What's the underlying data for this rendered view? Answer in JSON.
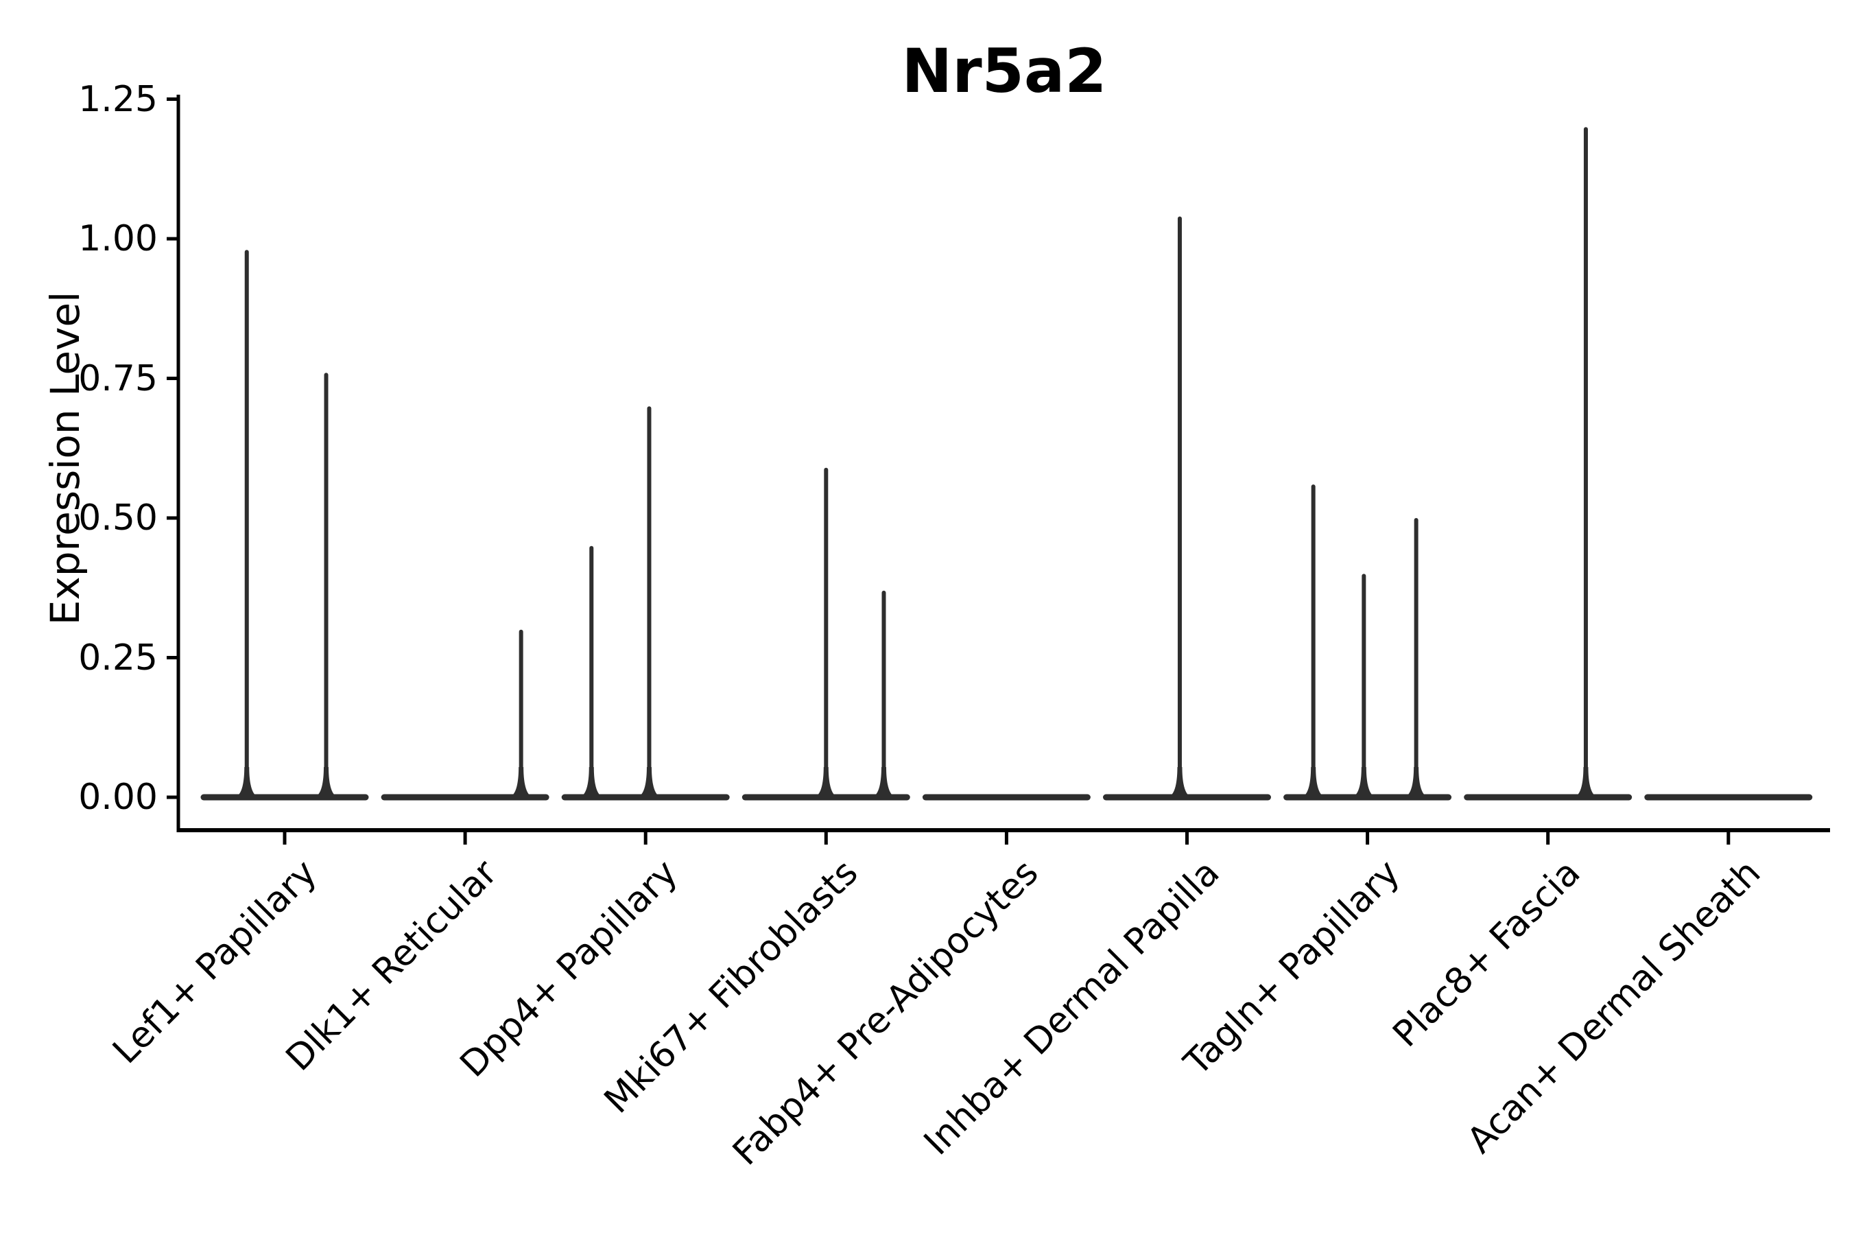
{
  "title": "Nr5a2",
  "chart_data": {
    "type": "violin",
    "title": "Nr5a2",
    "xlabel": "",
    "ylabel": "Expression Level",
    "ylim": [
      -0.06,
      1.27
    ],
    "y_ticks": [
      0,
      0.25,
      0.5,
      0.75,
      1.0,
      1.25
    ],
    "y_tick_labels": [
      "0.00",
      "0.25",
      "0.50",
      "0.75",
      "1.00",
      "1.25"
    ],
    "grid": false,
    "legend": null,
    "violin_width": 0.9,
    "categories": [
      "Lef1+ Papillary",
      "Dlk1+ Reticular",
      "Dpp4+ Papillary",
      "Mki67+ Fibroblasts",
      "Fabp4+ Pre-Adipocytes",
      "Inhba+ Dermal Papilla",
      "Tagln+ Papillary",
      "Plac8+ Fascia",
      "Acan+ Dermal Sheath"
    ],
    "violins": [
      {
        "category": "Lef1+ Papillary",
        "baseline_value": 0,
        "spikes": [
          {
            "offset": -0.21,
            "value": 0.98
          },
          {
            "offset": 0.23,
            "value": 0.76
          }
        ]
      },
      {
        "category": "Dlk1+ Reticular",
        "baseline_value": 0,
        "spikes": [
          {
            "offset": 0.31,
            "value": 0.3
          }
        ]
      },
      {
        "category": "Dpp4+ Papillary",
        "baseline_value": 0,
        "spikes": [
          {
            "offset": -0.3,
            "value": 0.45
          },
          {
            "offset": 0.02,
            "value": 0.7
          }
        ]
      },
      {
        "category": "Mki67+ Fibroblasts",
        "baseline_value": 0,
        "spikes": [
          {
            "offset": 0.0,
            "value": 0.59
          },
          {
            "offset": 0.32,
            "value": 0.37
          }
        ]
      },
      {
        "category": "Fabp4+ Pre-Adipocytes",
        "baseline_value": 0,
        "spikes": []
      },
      {
        "category": "Inhba+ Dermal Papilla",
        "baseline_value": 0,
        "spikes": [
          {
            "offset": -0.04,
            "value": 1.04
          }
        ]
      },
      {
        "category": "Tagln+ Papillary",
        "baseline_value": 0,
        "spikes": [
          {
            "offset": -0.3,
            "value": 0.56
          },
          {
            "offset": -0.02,
            "value": 0.4
          },
          {
            "offset": 0.27,
            "value": 0.5
          }
        ]
      },
      {
        "category": "Plac8+ Fascia",
        "baseline_value": 0,
        "spikes": [
          {
            "offset": 0.21,
            "value": 1.2
          }
        ]
      },
      {
        "category": "Acan+ Dermal Sheath",
        "baseline_value": 0,
        "spikes": []
      }
    ],
    "colors": {
      "stroke": "#2e2e2e",
      "axis": "#000000",
      "text": "#000000",
      "background": "#ffffff"
    }
  }
}
